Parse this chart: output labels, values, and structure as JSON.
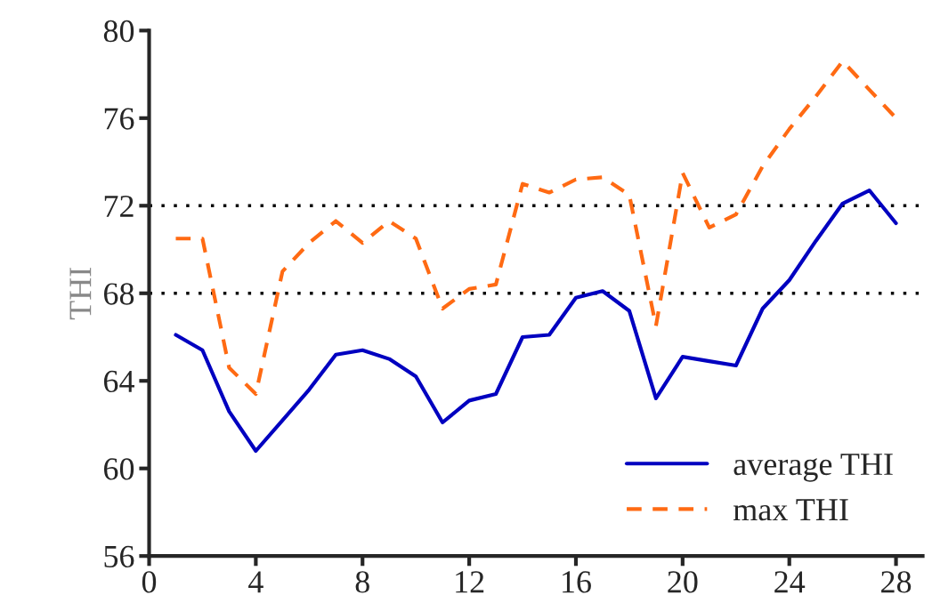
{
  "chart_data": {
    "type": "line",
    "ylabel": "THI",
    "x": [
      1,
      2,
      3,
      4,
      5,
      6,
      7,
      8,
      9,
      10,
      11,
      12,
      13,
      14,
      15,
      16,
      17,
      18,
      19,
      20,
      21,
      22,
      23,
      24,
      25,
      26,
      27,
      28
    ],
    "series": [
      {
        "name": "average THI",
        "color": "#0000c0",
        "line_style": "solid",
        "values": [
          66.1,
          65.4,
          62.6,
          60.8,
          62.2,
          63.6,
          65.2,
          65.4,
          65.0,
          64.2,
          62.1,
          63.1,
          63.4,
          66.0,
          66.1,
          67.8,
          68.1,
          67.2,
          63.2,
          65.1,
          64.9,
          64.7,
          67.3,
          68.6,
          70.4,
          72.1,
          72.7,
          71.2
        ]
      },
      {
        "name": "max THI",
        "color": "#ff6a13",
        "line_style": "dashed",
        "values": [
          70.5,
          70.5,
          64.6,
          63.4,
          69.0,
          70.3,
          71.3,
          70.3,
          71.3,
          70.5,
          67.3,
          68.2,
          68.4,
          73.0,
          72.6,
          73.2,
          73.3,
          72.5,
          66.5,
          73.5,
          71.0,
          71.6,
          73.8,
          75.5,
          77.0,
          78.6,
          77.3,
          76.0
        ]
      }
    ],
    "xlim": [
      0,
      29
    ],
    "xticks": [
      0,
      4,
      8,
      12,
      16,
      20,
      24,
      28
    ],
    "ylim": [
      56,
      80
    ],
    "yticks": [
      56,
      60,
      64,
      68,
      72,
      76,
      80
    ],
    "ref_lines": [
      {
        "axis": "y",
        "value": 68,
        "color": "#000000",
        "line_style": "dotted"
      },
      {
        "axis": "y",
        "value": 72,
        "color": "#000000",
        "line_style": "dotted"
      }
    ],
    "grid": false,
    "legend": "bottom right",
    "marker": "none"
  }
}
